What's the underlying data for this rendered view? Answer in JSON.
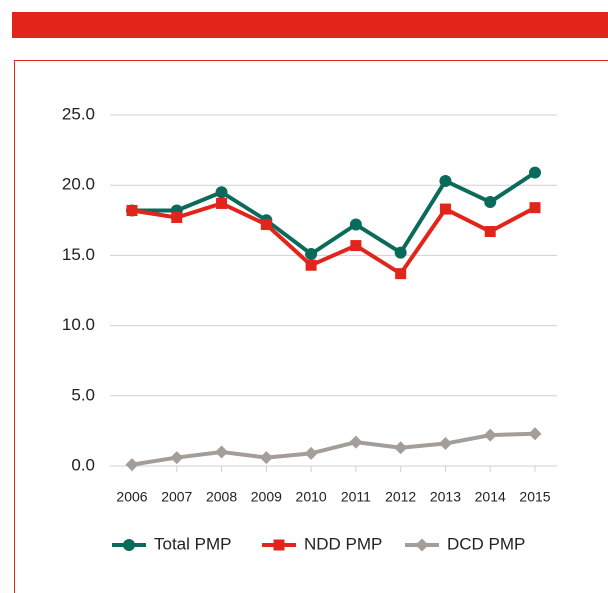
{
  "chart_data": {
    "type": "line",
    "categories": [
      "2006",
      "2007",
      "2008",
      "2009",
      "2010",
      "2011",
      "2012",
      "2013",
      "2014",
      "2015"
    ],
    "series": [
      {
        "name": "Total PMP",
        "color": "#0b6b5a",
        "marker": "circle",
        "values": [
          18.2,
          18.2,
          19.5,
          17.5,
          15.1,
          17.2,
          15.2,
          20.3,
          18.8,
          20.9
        ]
      },
      {
        "name": "NDD PMP",
        "color": "#e3241b",
        "marker": "square",
        "values": [
          18.2,
          17.7,
          18.7,
          17.2,
          14.3,
          15.7,
          13.7,
          18.3,
          16.7,
          18.4
        ]
      },
      {
        "name": "DCD PMP",
        "color": "#a39e99",
        "marker": "diamond",
        "values": [
          0.1,
          0.6,
          1.0,
          0.6,
          0.9,
          1.7,
          1.3,
          1.6,
          2.2,
          2.3
        ]
      }
    ],
    "ylim": [
      0,
      25
    ],
    "yticks": [
      {
        "value": 0,
        "label": "0.0"
      },
      {
        "value": 5,
        "label": "5.0"
      },
      {
        "value": 10,
        "label": "10.0"
      },
      {
        "value": 15,
        "label": "15.0"
      },
      {
        "value": 20,
        "label": "20.0"
      },
      {
        "value": 25,
        "label": "25.0"
      }
    ],
    "grid": true
  }
}
